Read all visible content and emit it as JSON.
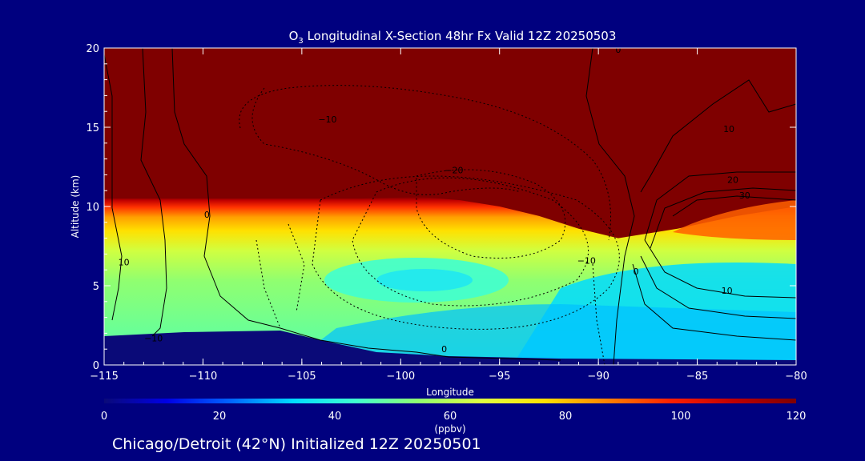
{
  "chart_data": {
    "type": "heatmap",
    "title_prefix": "O",
    "title_sub": "3",
    "title_rest": " Longitudinal X-Section 48hr  Fx Valid 12Z 20250503",
    "xlabel": "Longitude",
    "ylabel": "Altitude (km)",
    "xlim": [
      -115,
      -80
    ],
    "ylim": [
      0,
      20
    ],
    "x_ticks": [
      -115,
      -110,
      -105,
      -100,
      -95,
      -90,
      -85,
      -80
    ],
    "x_tick_labels": [
      "−115",
      "−110",
      "−105",
      "−100",
      "−95",
      "−90",
      "−85",
      "−80"
    ],
    "y_ticks": [
      0,
      5,
      10,
      15,
      20
    ],
    "y_tick_labels": [
      "0",
      "5",
      "10",
      "15",
      "20"
    ],
    "colorbar": {
      "min": 0,
      "max": 120,
      "ticks": [
        0,
        20,
        40,
        60,
        80,
        100,
        120
      ],
      "tick_labels": [
        "0",
        "20",
        "40",
        "60",
        "80",
        "100",
        "120"
      ],
      "unit": "(ppbv)",
      "colors": [
        "#0a0a78",
        "#0000e6",
        "#0064ff",
        "#00dcff",
        "#40ffd0",
        "#90ff70",
        "#e0ff40",
        "#ffe000",
        "#ff8000",
        "#ff2000",
        "#c00000",
        "#7f0000"
      ]
    },
    "field_description_tops": {
      "tropopause_km": [
        10.5,
        10.5,
        10.5,
        10.5,
        10.6,
        10.4,
        10.0,
        9.4,
        8.6,
        8.0,
        8.6,
        9.4,
        10.0
      ],
      "tropopause_lon": [
        -115,
        -110,
        -105,
        -102,
        -99,
        -97,
        -95,
        -93,
        -91,
        -89,
        -86,
        -83,
        -80
      ]
    },
    "contour_labels": [
      {
        "text": "0",
        "lon": -109.8,
        "alt": 9.3
      },
      {
        "text": "10",
        "lon": -114.0,
        "alt": 6.3
      },
      {
        "text": "−10",
        "lon": -112.5,
        "alt": 1.5
      },
      {
        "text": "−10",
        "lon": -103.7,
        "alt": 15.3
      },
      {
        "text": "−20",
        "lon": -97.3,
        "alt": 12.1
      },
      {
        "text": "−10",
        "lon": -90.6,
        "alt": 6.4
      },
      {
        "text": "0",
        "lon": -88.1,
        "alt": 5.7
      },
      {
        "text": "0",
        "lon": -89.0,
        "alt": 19.7
      },
      {
        "text": "0",
        "lon": -97.8,
        "alt": 0.8
      },
      {
        "text": "10",
        "lon": -83.4,
        "alt": 14.7
      },
      {
        "text": "20",
        "lon": -83.2,
        "alt": 11.5
      },
      {
        "text": "30",
        "lon": -82.6,
        "alt": 10.5
      },
      {
        "text": "10",
        "lon": -83.5,
        "alt": 4.5
      }
    ]
  },
  "footer": {
    "caption": "Chicago/Detroit (42°N) Initialized 12Z 20250501"
  }
}
